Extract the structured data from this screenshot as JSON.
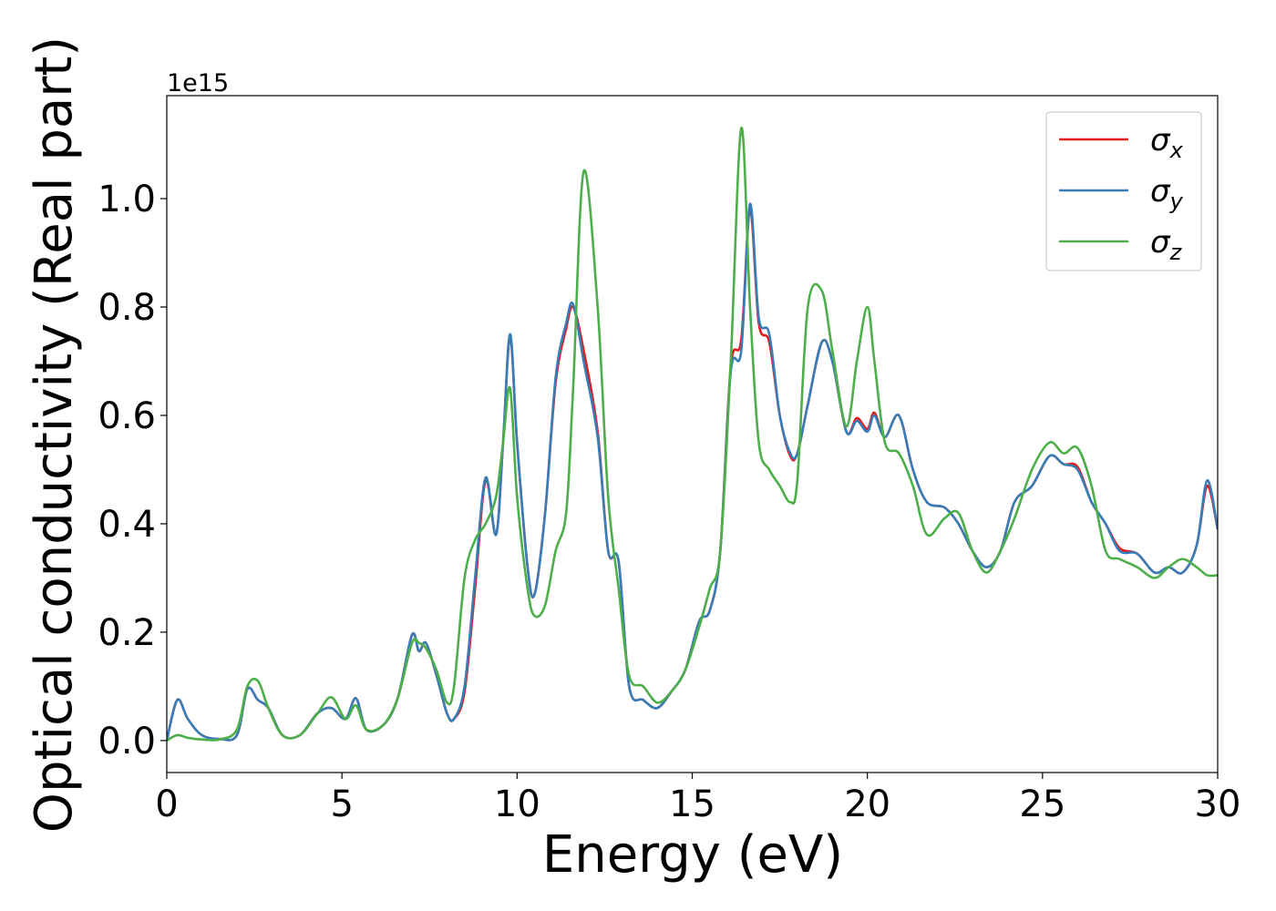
{
  "chart_data": {
    "type": "line",
    "xlabel": "Energy (eV)",
    "ylabel": "Optical conductivity (Real part)",
    "offset_text": "1e15",
    "x": [
      0,
      0.3,
      0.6,
      1.0,
      1.5,
      2.0,
      2.3,
      2.6,
      2.9,
      3.3,
      3.8,
      4.3,
      4.7,
      5.1,
      5.4,
      5.7,
      6.2,
      6.6,
      7.0,
      7.2,
      7.4,
      7.7,
      8.0,
      8.2,
      8.5,
      8.8,
      9.1,
      9.4,
      9.6,
      9.8,
      10.0,
      10.3,
      10.5,
      10.8,
      11.1,
      11.4,
      11.6,
      11.9,
      12.3,
      12.6,
      12.9,
      13.2,
      13.6,
      14.0,
      14.4,
      14.8,
      15.2,
      15.5,
      15.8,
      16.1,
      16.4,
      16.65,
      16.9,
      17.2,
      17.5,
      17.8,
      18.0,
      18.3,
      18.7,
      19.0,
      19.4,
      19.7,
      20.0,
      20.2,
      20.5,
      20.9,
      21.3,
      21.7,
      22.2,
      22.6,
      23.0,
      23.4,
      23.8,
      24.2,
      24.7,
      25.2,
      25.6,
      26.0,
      26.4,
      26.8,
      27.2,
      27.7,
      28.2,
      28.6,
      29.0,
      29.4,
      29.7,
      30.0
    ],
    "series": [
      {
        "name": "σx",
        "color": "#e41a1c",
        "values": [
          0.0,
          0.075,
          0.04,
          0.01,
          0.003,
          0.01,
          0.095,
          0.075,
          0.06,
          0.01,
          0.01,
          0.05,
          0.06,
          0.04,
          0.078,
          0.02,
          0.03,
          0.08,
          0.195,
          0.165,
          0.18,
          0.12,
          0.05,
          0.04,
          0.09,
          0.28,
          0.48,
          0.38,
          0.55,
          0.745,
          0.55,
          0.32,
          0.27,
          0.42,
          0.66,
          0.76,
          0.8,
          0.72,
          0.57,
          0.35,
          0.33,
          0.1,
          0.075,
          0.06,
          0.09,
          0.13,
          0.22,
          0.24,
          0.35,
          0.69,
          0.74,
          0.98,
          0.77,
          0.735,
          0.6,
          0.525,
          0.53,
          0.62,
          0.735,
          0.7,
          0.57,
          0.595,
          0.575,
          0.605,
          0.56,
          0.6,
          0.5,
          0.44,
          0.43,
          0.4,
          0.35,
          0.32,
          0.35,
          0.44,
          0.47,
          0.525,
          0.51,
          0.505,
          0.44,
          0.4,
          0.355,
          0.345,
          0.31,
          0.32,
          0.31,
          0.36,
          0.47,
          0.39
        ]
      },
      {
        "name": "σy",
        "color": "#377eb8",
        "values": [
          0.0,
          0.075,
          0.04,
          0.01,
          0.003,
          0.01,
          0.095,
          0.075,
          0.06,
          0.01,
          0.01,
          0.05,
          0.06,
          0.04,
          0.078,
          0.02,
          0.03,
          0.08,
          0.195,
          0.165,
          0.18,
          0.12,
          0.05,
          0.04,
          0.1,
          0.3,
          0.485,
          0.38,
          0.55,
          0.75,
          0.55,
          0.32,
          0.27,
          0.42,
          0.67,
          0.77,
          0.805,
          0.7,
          0.56,
          0.35,
          0.33,
          0.1,
          0.075,
          0.06,
          0.09,
          0.13,
          0.22,
          0.24,
          0.35,
          0.68,
          0.72,
          0.99,
          0.78,
          0.75,
          0.6,
          0.53,
          0.53,
          0.62,
          0.735,
          0.7,
          0.57,
          0.59,
          0.57,
          0.6,
          0.56,
          0.6,
          0.5,
          0.44,
          0.43,
          0.4,
          0.35,
          0.32,
          0.35,
          0.44,
          0.47,
          0.525,
          0.51,
          0.5,
          0.44,
          0.4,
          0.35,
          0.345,
          0.31,
          0.32,
          0.31,
          0.36,
          0.48,
          0.39
        ]
      },
      {
        "name": "σz",
        "color": "#4daf4a",
        "values": [
          0.0,
          0.01,
          0.005,
          0.002,
          0.002,
          0.02,
          0.1,
          0.11,
          0.06,
          0.01,
          0.01,
          0.05,
          0.08,
          0.04,
          0.065,
          0.02,
          0.03,
          0.08,
          0.18,
          0.18,
          0.17,
          0.13,
          0.07,
          0.1,
          0.3,
          0.37,
          0.4,
          0.45,
          0.55,
          0.65,
          0.45,
          0.28,
          0.23,
          0.25,
          0.35,
          0.42,
          0.65,
          1.05,
          0.8,
          0.45,
          0.28,
          0.12,
          0.1,
          0.07,
          0.09,
          0.13,
          0.21,
          0.28,
          0.35,
          0.7,
          1.13,
          0.8,
          0.55,
          0.5,
          0.47,
          0.44,
          0.48,
          0.8,
          0.83,
          0.72,
          0.58,
          0.7,
          0.8,
          0.7,
          0.55,
          0.53,
          0.47,
          0.38,
          0.41,
          0.42,
          0.35,
          0.31,
          0.35,
          0.41,
          0.5,
          0.55,
          0.53,
          0.54,
          0.47,
          0.35,
          0.335,
          0.32,
          0.3,
          0.32,
          0.335,
          0.32,
          0.305,
          0.305
        ]
      }
    ],
    "xlim": [
      0,
      30
    ],
    "xticks": [
      0,
      5,
      10,
      15,
      20,
      25,
      30
    ],
    "ylim": [
      -0.059,
      1.19
    ],
    "yticks": [
      {
        "value": 0,
        "label": "0.0"
      },
      0.2,
      0.4,
      0.6,
      0.8,
      {
        "value": 1,
        "label": "1.0"
      }
    ],
    "legend": "upper right",
    "grid": false
  }
}
